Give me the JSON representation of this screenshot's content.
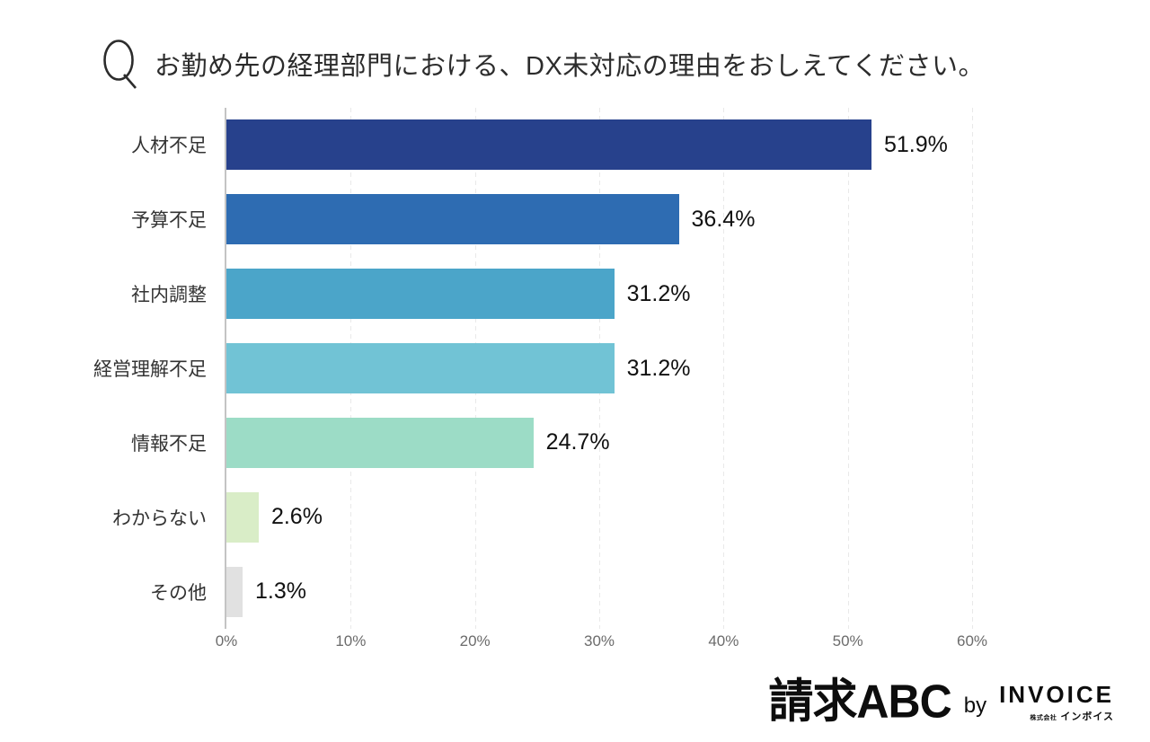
{
  "header": {
    "q_mark": "Q",
    "title": "お勤め先の経理部門における、DX未対応の理由をおしえてください。"
  },
  "chart_data": {
    "type": "bar",
    "orientation": "horizontal",
    "title": "お勤め先の経理部門における、DX未対応の理由をおしえてください。",
    "categories": [
      "人材不足",
      "予算不足",
      "社内調整",
      "経営理解不足",
      "情報不足",
      "わからない",
      "その他"
    ],
    "values": [
      51.9,
      36.4,
      31.2,
      31.2,
      24.7,
      2.6,
      1.3
    ],
    "value_labels": [
      "51.9%",
      "36.4%",
      "31.2%",
      "31.2%",
      "24.7%",
      "2.6%",
      "1.3%"
    ],
    "bar_colors": [
      "#27418c",
      "#2e6cb2",
      "#4ba5c9",
      "#71c3d5",
      "#9cdcc6",
      "#d9edc7",
      "#e1e1e1"
    ],
    "xlabel": "",
    "ylabel": "",
    "xlim": [
      0,
      60
    ],
    "x_ticks": [
      0,
      10,
      20,
      30,
      40,
      50,
      60
    ],
    "x_tick_labels": [
      "0%",
      "10%",
      "20%",
      "30%",
      "40%",
      "50%",
      "60%"
    ],
    "grid": "vertical-dashed",
    "legend": "none",
    "axis_color": "#c4c4c4",
    "grid_color": "#e9e9e9",
    "tick_label_color": "#6b6b6b",
    "category_label_color": "#333333",
    "value_label_color": "#111111"
  },
  "footer_logo": {
    "brand": "請求ABC",
    "by": "by",
    "company": "INVOICE",
    "company_sub_prefix": "株式会社",
    "company_sub_name": "インボイス"
  }
}
